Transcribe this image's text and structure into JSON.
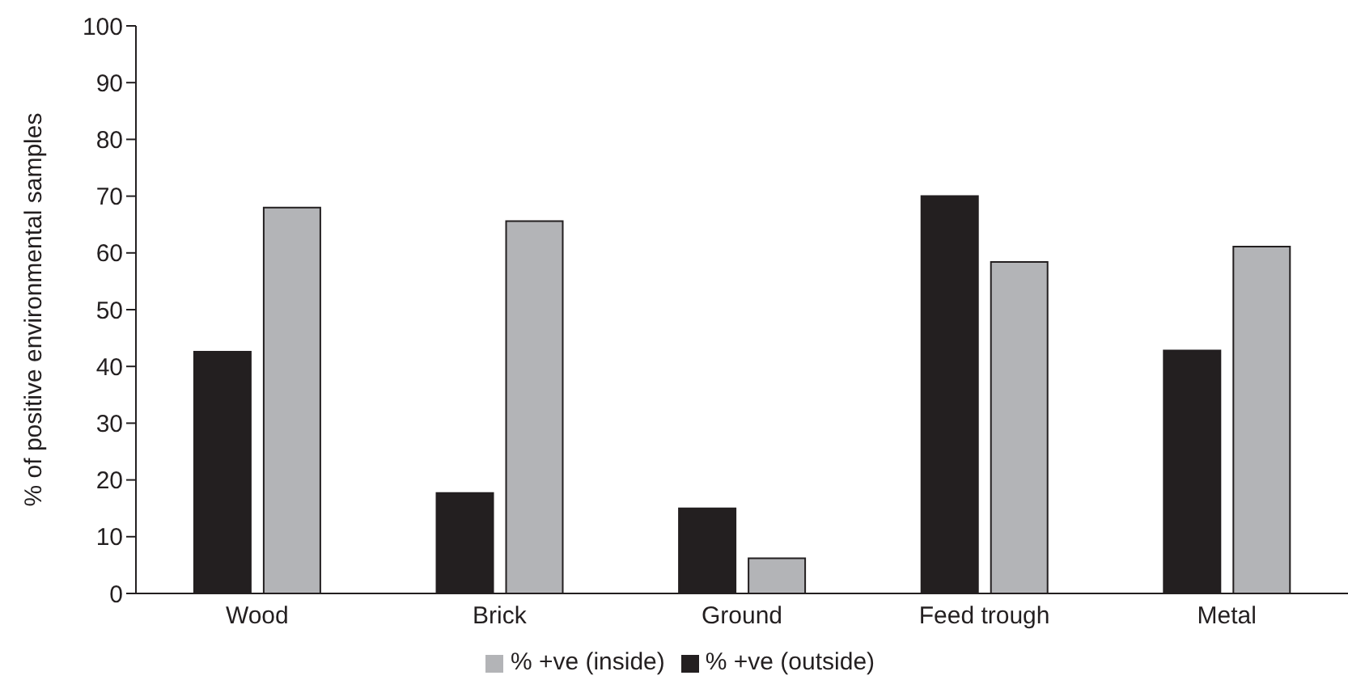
{
  "chart_data": {
    "type": "bar",
    "ylabel": "% of positive environmental samples",
    "categories": [
      "Wood",
      "Brick",
      "Ground",
      "Feed trough",
      "Metal"
    ],
    "series": [
      {
        "name": "% +ve (outside)",
        "color": "#231f20",
        "values": [
          42.6,
          17.7,
          15.0,
          70.0,
          42.8
        ]
      },
      {
        "name": "% +ve (inside)",
        "color": "#b3b4b7",
        "values": [
          68.0,
          65.6,
          6.2,
          58.4,
          61.1
        ]
      }
    ],
    "ylim": [
      0,
      100
    ],
    "yticks": [
      0,
      10,
      20,
      30,
      40,
      50,
      60,
      70,
      80,
      90,
      100
    ],
    "grid": false,
    "legend": "bottom"
  }
}
